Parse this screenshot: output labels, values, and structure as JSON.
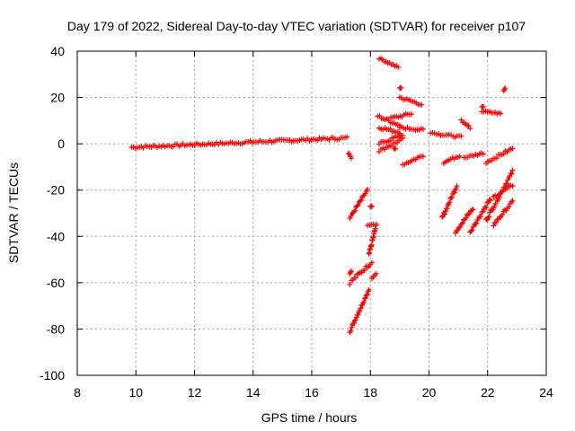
{
  "chart_data": {
    "type": "scatter",
    "marker": "+",
    "color": "#ff0000",
    "title": "Day 179 of 2022, Sidereal Day-to-day VTEC variation (SDTVAR) for receiver p107",
    "xlabel": "GPS time / hours",
    "ylabel": "SDTVAR / TECUs",
    "xlim": [
      8,
      24
    ],
    "ylim": [
      -100,
      40
    ],
    "xticks": [
      8,
      10,
      12,
      14,
      16,
      18,
      20,
      22,
      24
    ],
    "yticks": [
      -100,
      -80,
      -60,
      -40,
      -20,
      0,
      20,
      40
    ],
    "grid": true,
    "series": [
      {
        "name": "SDTVAR",
        "tracks": [
          {
            "start": [
              9.85,
              -1.5
            ],
            "end": [
              17.2,
              2.5
            ],
            "jitter": 1.2
          },
          {
            "start": [
              17.25,
              -4
            ],
            "end": [
              17.35,
              -6
            ],
            "jitter": 0.5
          },
          {
            "start": [
              17.3,
              -81
            ],
            "end": [
              17.95,
              -63
            ],
            "jitter": 1.2
          },
          {
            "start": [
              17.3,
              -60
            ],
            "end": [
              18.05,
              -51
            ],
            "jitter": 1.5
          },
          {
            "start": [
              17.3,
              -56
            ],
            "end": [
              17.35,
              -55
            ],
            "jitter": 0.3
          },
          {
            "start": [
              17.3,
              -32
            ],
            "end": [
              17.9,
              -20
            ],
            "jitter": 1.2
          },
          {
            "start": [
              17.95,
              -48
            ],
            "end": [
              18.2,
              -35
            ],
            "jitter": 1.2
          },
          {
            "start": [
              17.9,
              -35
            ],
            "end": [
              18.1,
              -35
            ],
            "jitter": 0.5
          },
          {
            "start": [
              18.0,
              -27
            ],
            "end": [
              18.05,
              -27
            ],
            "jitter": 0.5
          },
          {
            "start": [
              18.05,
              -58
            ],
            "end": [
              18.2,
              -56
            ],
            "jitter": 0.5
          },
          {
            "start": [
              18.3,
              37
            ],
            "end": [
              18.95,
              33
            ],
            "jitter": 0.8
          },
          {
            "start": [
              18.25,
              12
            ],
            "end": [
              19.0,
              8
            ],
            "jitter": 1.2
          },
          {
            "start": [
              18.3,
              7
            ],
            "end": [
              19.0,
              5
            ],
            "jitter": 1.2
          },
          {
            "start": [
              18.3,
              -3
            ],
            "end": [
              19.1,
              2
            ],
            "jitter": 1.2
          },
          {
            "start": [
              18.3,
              0
            ],
            "end": [
              19.1,
              4
            ],
            "jitter": 1.2
          },
          {
            "start": [
              18.7,
              11
            ],
            "end": [
              19.4,
              13
            ],
            "jitter": 1.2
          },
          {
            "start": [
              19.0,
              20
            ],
            "end": [
              19.75,
              17
            ],
            "jitter": 1.2
          },
          {
            "start": [
              19.0,
              24
            ],
            "end": [
              19.05,
              24
            ],
            "jitter": 0.3
          },
          {
            "start": [
              19.0,
              7
            ],
            "end": [
              19.8,
              6
            ],
            "jitter": 1.0
          },
          {
            "start": [
              18.8,
              -2
            ],
            "end": [
              18.85,
              -2
            ],
            "jitter": 0.5
          },
          {
            "start": [
              19.1,
              -9
            ],
            "end": [
              19.8,
              -5
            ],
            "jitter": 1.0
          },
          {
            "start": [
              20.05,
              5
            ],
            "end": [
              20.4,
              4
            ],
            "jitter": 0.8
          },
          {
            "start": [
              20.4,
              4
            ],
            "end": [
              21.1,
              3
            ],
            "jitter": 0.8
          },
          {
            "start": [
              20.45,
              -32
            ],
            "end": [
              20.95,
              -18
            ],
            "jitter": 1.5
          },
          {
            "start": [
              20.5,
              -8
            ],
            "end": [
              21.05,
              -5
            ],
            "jitter": 1.0
          },
          {
            "start": [
              20.9,
              -38
            ],
            "end": [
              21.5,
              -28
            ],
            "jitter": 1.5
          },
          {
            "start": [
              21.1,
              10
            ],
            "end": [
              21.4,
              7
            ],
            "jitter": 1.0
          },
          {
            "start": [
              21.2,
              -6
            ],
            "end": [
              21.85,
              -4
            ],
            "jitter": 1.0
          },
          {
            "start": [
              21.4,
              -38
            ],
            "end": [
              22.1,
              -24
            ],
            "jitter": 1.5
          },
          {
            "start": [
              21.8,
              14
            ],
            "end": [
              22.45,
              13
            ],
            "jitter": 0.8
          },
          {
            "start": [
              21.8,
              16
            ],
            "end": [
              21.85,
              16
            ],
            "jitter": 0.3
          },
          {
            "start": [
              21.95,
              -8
            ],
            "end": [
              22.85,
              -2
            ],
            "jitter": 1.2
          },
          {
            "start": [
              21.95,
              -33
            ],
            "end": [
              22.85,
              -12
            ],
            "jitter": 1.5
          },
          {
            "start": [
              22.2,
              -23
            ],
            "end": [
              22.85,
              -18
            ],
            "jitter": 1.2
          },
          {
            "start": [
              22.2,
              -35
            ],
            "end": [
              22.85,
              -25
            ],
            "jitter": 1.2
          },
          {
            "start": [
              22.55,
              23
            ],
            "end": [
              22.6,
              24
            ],
            "jitter": 0.3
          }
        ]
      }
    ]
  }
}
